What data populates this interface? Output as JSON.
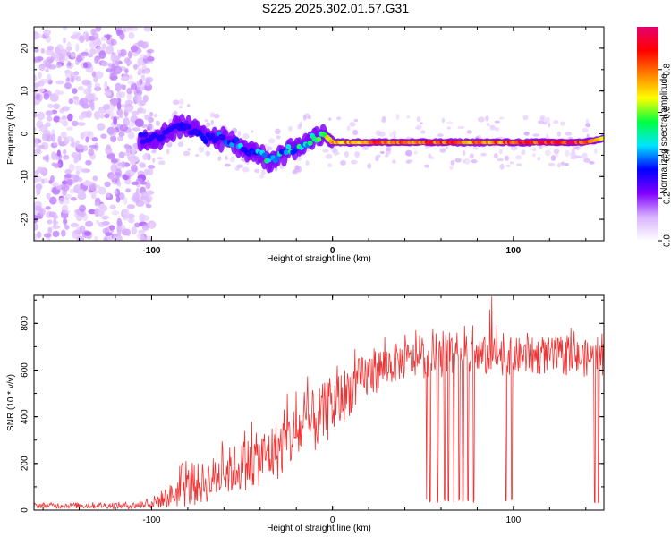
{
  "title": "S225.2025.302.01.57.G31",
  "chart_data": [
    {
      "type": "heatmap",
      "name": "spectrogram",
      "xlabel": "Height of straight line (km)",
      "ylabel": "Frequency (Hz)",
      "xlim": [
        -165,
        150
      ],
      "ylim": [
        -25,
        25
      ],
      "xticks": [
        -100,
        0,
        100
      ],
      "yticks": [
        -20,
        -10,
        0,
        10,
        20
      ],
      "colorbar": {
        "label": "Normalized spectral amplitude",
        "range": [
          0,
          1
        ],
        "ticks": [
          0.0,
          0.2,
          0.4,
          0.6,
          0.8
        ],
        "tick_labels": [
          "0.0",
          "0.2",
          "0.4",
          "0.6",
          "0.8"
        ],
        "colormap": [
          "#ffffff",
          "#d9b3ff",
          "#8000ff",
          "#0000ff",
          "#00e5ff",
          "#00ff40",
          "#ffff00",
          "#ff8000",
          "#ff0000",
          "#e6006e"
        ]
      },
      "ridge": {
        "x": [
          -105,
          -95,
          -85,
          -78,
          -70,
          -60,
          -50,
          -40,
          -35,
          -30,
          -20,
          -10,
          -5,
          0,
          20,
          40,
          60,
          80,
          100,
          120,
          140,
          150
        ],
        "freq": [
          -1,
          -1,
          2,
          1,
          -1,
          -1,
          -3,
          -5,
          -6,
          -5,
          -3,
          -1,
          0,
          -2,
          -2,
          -2,
          -2,
          -2,
          -2,
          -2,
          -2,
          -1
        ],
        "amplitude": [
          0.2,
          0.25,
          0.25,
          0.3,
          0.3,
          0.35,
          0.4,
          0.45,
          0.5,
          0.5,
          0.55,
          0.6,
          0.6,
          0.75,
          0.8,
          0.85,
          0.85,
          0.8,
          0.85,
          0.9,
          0.9,
          0.6
        ]
      }
    },
    {
      "type": "line",
      "name": "snr",
      "xlabel": "Height of straight line (km)",
      "ylabel": "SNR (10 * v/v)",
      "xlim": [
        -165,
        150
      ],
      "ylim": [
        0,
        920
      ],
      "xticks": [
        -100,
        0,
        100
      ],
      "yticks": [
        0,
        200,
        400,
        600,
        800
      ],
      "color": "#ee3333",
      "envelope": {
        "x": [
          -165,
          -110,
          -100,
          -90,
          -80,
          -70,
          -60,
          -50,
          -40,
          -30,
          -20,
          -10,
          0,
          10,
          20,
          30,
          40,
          60,
          80,
          100,
          120,
          140,
          150
        ],
        "base": [
          20,
          20,
          30,
          60,
          100,
          120,
          160,
          190,
          220,
          260,
          330,
          380,
          440,
          520,
          580,
          620,
          640,
          650,
          660,
          660,
          660,
          650,
          650
        ],
        "spread": [
          12,
          15,
          25,
          50,
          90,
          90,
          100,
          110,
          120,
          130,
          130,
          140,
          130,
          110,
          100,
          90,
          80,
          80,
          90,
          80,
          80,
          80,
          80
        ]
      },
      "dropouts_x": [
        52,
        54,
        58,
        62,
        64,
        67,
        70,
        72,
        75,
        78,
        87,
        96,
        99,
        145,
        147
      ],
      "peaks": [
        {
          "x": 88,
          "y": 915
        },
        {
          "x": 87,
          "y": 860
        }
      ]
    }
  ]
}
